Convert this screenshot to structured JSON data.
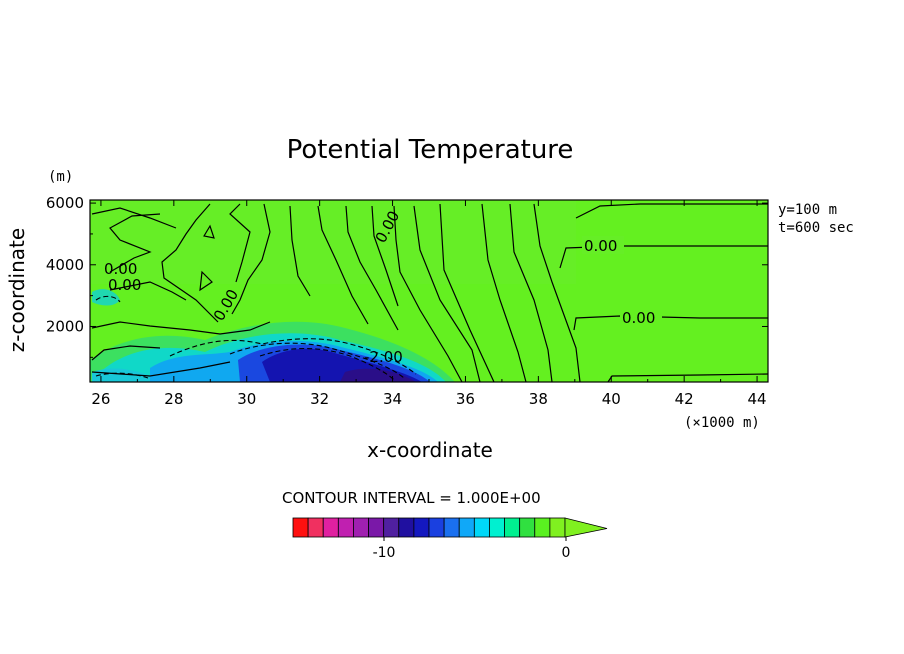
{
  "chart_data": {
    "type": "heatmap",
    "title": "Potential Temperature",
    "xlabel": "x-coordinate",
    "ylabel": "z-coordinate",
    "x_unit": "(×1000 m)",
    "y_unit": "(m)",
    "xlim": [
      25.7,
      44.3
    ],
    "ylim": [
      200,
      6100
    ],
    "x_ticks": [
      "26",
      "28",
      "30",
      "32",
      "34",
      "36",
      "38",
      "40",
      "42",
      "44"
    ],
    "y_ticks": [
      "2000",
      "4000",
      "6000"
    ],
    "annotations": [
      "y=100 m",
      "t=600 sec"
    ],
    "contour_labels": [
      "0.00",
      "0.00",
      "0.00",
      "0.00",
      "0.00",
      "0.00",
      "-2.00"
    ],
    "contour_interval_label": "CONTOUR INTERVAL = 1.000E+00",
    "colorbar": {
      "colors": [
        "#ff1010",
        "#f03060",
        "#e020a0",
        "#c020b0",
        "#a020b0",
        "#7a18a8",
        "#5020a0",
        "#2010a0",
        "#1418c0",
        "#1a40e0",
        "#1a70f0",
        "#10a8f8",
        "#00d8f8",
        "#00f0d0",
        "#00f090",
        "#30e040",
        "#5af020",
        "#80f020"
      ],
      "tick_labels": [
        "-10",
        "0"
      ]
    },
    "anomaly_regions": [
      {
        "x": 27.6,
        "z": 1100,
        "value": -4
      },
      {
        "x": 31.0,
        "z": 1200,
        "value": -8
      },
      {
        "x": 33.4,
        "z": 800,
        "value": -9
      },
      {
        "x": 34.4,
        "z": 400,
        "value": -10
      },
      {
        "x": 26.3,
        "z": 2900,
        "value": -3
      }
    ]
  }
}
